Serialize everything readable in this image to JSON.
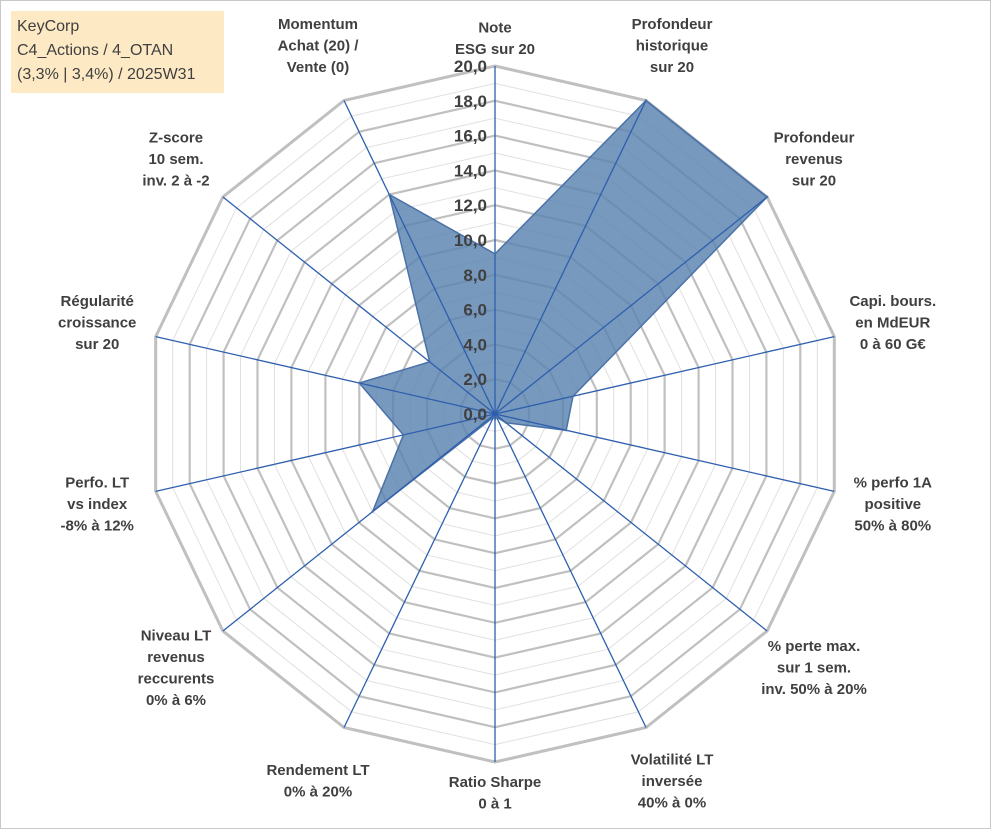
{
  "title_lines": [
    "KeyCorp",
    "C4_Actions / 4_OTAN",
    "(3,3% | 3,4%) / 2025W31"
  ],
  "chart_data": {
    "type": "radar",
    "rmax": 20,
    "tick_step": 2,
    "ticks": [
      "0,0",
      "2,0",
      "4,0",
      "6,0",
      "8,0",
      "10,0",
      "12,0",
      "14,0",
      "16,0",
      "18,0",
      "20,0"
    ],
    "axes": [
      {
        "label": [
          "Note",
          "ESG sur 20"
        ]
      },
      {
        "label": [
          "Profondeur",
          "historique",
          "sur 20"
        ]
      },
      {
        "label": [
          "Profondeur",
          "revenus",
          "sur 20"
        ]
      },
      {
        "label": [
          "Capi. bours.",
          "en MdEUR",
          "0 à 60 G€"
        ]
      },
      {
        "label": [
          "% perfo 1A",
          "positive",
          "50% à 80%"
        ]
      },
      {
        "label": [
          "% perte max.",
          "sur 1 sem.",
          "inv. 50% à 20%"
        ]
      },
      {
        "label": [
          "Volatilité LT",
          "inversée",
          "40% à 0%"
        ]
      },
      {
        "label": [
          "Ratio Sharpe",
          "0 à 1"
        ]
      },
      {
        "label": [
          "Rendement LT",
          "0% à 20%"
        ]
      },
      {
        "label": [
          "Niveau LT",
          "revenus",
          "reccurents",
          "0% à 6%"
        ]
      },
      {
        "label": [
          "Perfo. LT",
          "vs index",
          "-8% à 12%"
        ]
      },
      {
        "label": [
          "Régularité",
          "croissance",
          "sur 20"
        ]
      },
      {
        "label": [
          "Z-score",
          "10 sem.",
          "inv. 2 à -2"
        ]
      },
      {
        "label": [
          "Momentum",
          "Achat (20) /",
          "Vente (0)"
        ]
      }
    ],
    "series": [
      {
        "values": [
          9.2,
          20,
          20,
          4.6,
          4.2,
          0.8,
          0.2,
          0.3,
          0.2,
          9.0,
          5.4,
          8.0,
          4.8,
          14.0
        ]
      }
    ],
    "colors": {
      "fill": "#5a82b0",
      "fill_opacity": 0.82,
      "series_line": "#4a72a8",
      "spoke": "#2e5fae",
      "grid_major": "#c0c0c0",
      "grid_minor": "#e0e0e0"
    }
  }
}
